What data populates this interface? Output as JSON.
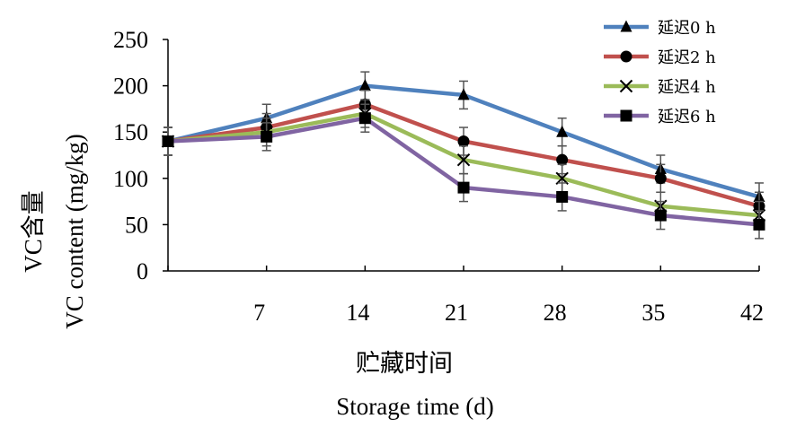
{
  "chart_data": {
    "type": "line",
    "x": [
      0,
      7,
      14,
      21,
      28,
      35,
      42
    ],
    "x_tick_labels": [
      "7",
      "14",
      "21",
      "28",
      "35",
      "42"
    ],
    "y_ticks": [
      0,
      50,
      100,
      150,
      200,
      250
    ],
    "ylim": [
      0,
      250
    ],
    "ylabel_cn": "VC含量",
    "ylabel_en": "VC content (mg/kg)",
    "xlabel_cn": "贮藏时间",
    "xlabel_en": "Storage time (d)",
    "legend_position": "top-right",
    "grid": false,
    "series": [
      {
        "name": "延迟0 h",
        "marker": "triangle",
        "color": "#4f81bd",
        "values": [
          140,
          165,
          200,
          190,
          150,
          110,
          80
        ],
        "errors": [
          15,
          15,
          15,
          15,
          15,
          15,
          15
        ]
      },
      {
        "name": "延迟2 h",
        "marker": "circle",
        "color": "#c0504d",
        "values": [
          140,
          155,
          180,
          140,
          120,
          100,
          70
        ],
        "errors": [
          15,
          15,
          15,
          15,
          15,
          15,
          15
        ]
      },
      {
        "name": "延迟4 h",
        "marker": "x",
        "color": "#9bbb59",
        "values": [
          140,
          150,
          170,
          120,
          100,
          70,
          60
        ],
        "errors": [
          15,
          15,
          15,
          15,
          15,
          15,
          15
        ]
      },
      {
        "name": "延迟6 h",
        "marker": "square",
        "color": "#8064a2",
        "values": [
          140,
          145,
          165,
          90,
          80,
          60,
          50
        ],
        "errors": [
          15,
          15,
          15,
          15,
          15,
          15,
          15
        ]
      }
    ]
  }
}
